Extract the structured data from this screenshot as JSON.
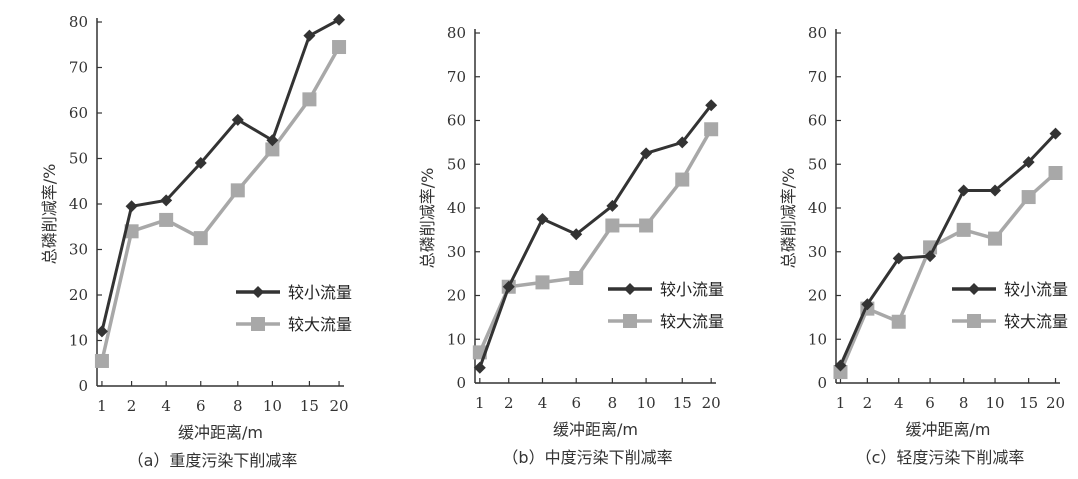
{
  "chart_data": [
    {
      "type": "line",
      "caption": "（a）重度污染下削减率",
      "ylabel": "总磷削减率/%",
      "xlabel": "缓冲距离/m",
      "categories": [
        "1",
        "2",
        "4",
        "6",
        "8",
        "10",
        "15",
        "20"
      ],
      "ylim": [
        0,
        80
      ],
      "yticks": [
        0,
        10,
        20,
        30,
        40,
        50,
        60,
        70,
        80
      ],
      "legend_position": "right",
      "series": [
        {
          "name": "较小流量",
          "color": "#333333",
          "marker": "diamond",
          "values": [
            12,
            39.5,
            40.8,
            49,
            58.5,
            54,
            77,
            80.5
          ]
        },
        {
          "name": "较大流量",
          "color": "#a8a8a8",
          "marker": "square",
          "values": [
            5.5,
            34,
            36.5,
            32.5,
            43,
            52,
            63,
            74.5
          ]
        }
      ]
    },
    {
      "type": "line",
      "caption": "（b）中度污染下削减率",
      "ylabel": "总磷削减率/%",
      "xlabel": "缓冲距离/m",
      "categories": [
        "1",
        "2",
        "4",
        "6",
        "8",
        "10",
        "15",
        "20"
      ],
      "ylim": [
        0,
        80
      ],
      "yticks": [
        0,
        10,
        20,
        30,
        40,
        50,
        60,
        70,
        80
      ],
      "legend_position": "right",
      "series": [
        {
          "name": "较小流量",
          "color": "#333333",
          "marker": "diamond",
          "values": [
            3.5,
            22,
            37.5,
            34,
            40.5,
            52.5,
            55,
            63.5
          ]
        },
        {
          "name": "较大流量",
          "color": "#a8a8a8",
          "marker": "square",
          "values": [
            7,
            22,
            23,
            24,
            36,
            36,
            46.5,
            58
          ]
        }
      ]
    },
    {
      "type": "line",
      "caption": "（c）轻度污染下削减率",
      "ylabel": "总磷削减率/%",
      "xlabel": "缓冲距离/m",
      "categories": [
        "1",
        "2",
        "4",
        "6",
        "8",
        "10",
        "15",
        "20"
      ],
      "ylim": [
        0,
        80
      ],
      "yticks": [
        0,
        10,
        20,
        30,
        40,
        50,
        60,
        70,
        80
      ],
      "legend_position": "right",
      "series": [
        {
          "name": "较小流量",
          "color": "#333333",
          "marker": "diamond",
          "values": [
            4,
            18,
            28.5,
            29,
            44,
            44,
            50.5,
            57
          ]
        },
        {
          "name": "较大流量",
          "color": "#a8a8a8",
          "marker": "square",
          "values": [
            2.5,
            17,
            14,
            31,
            35,
            33,
            42.5,
            48
          ]
        }
      ]
    }
  ]
}
